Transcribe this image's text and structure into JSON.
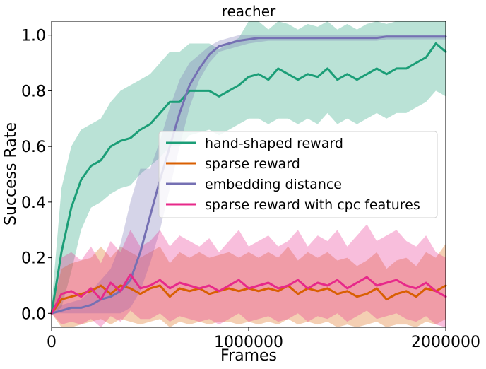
{
  "chart_data": {
    "type": "line",
    "title": "reacher",
    "xlabel": "Frames",
    "ylabel": "Success Rate",
    "xlim": [
      0,
      2000000
    ],
    "ylim": [
      -0.05,
      1.05
    ],
    "x_ticks": [
      0,
      1000000,
      2000000
    ],
    "x_tick_labels": [
      "0",
      "1000000",
      "2000000"
    ],
    "y_ticks": [
      0.0,
      0.2,
      0.4,
      0.6,
      0.8,
      1.0
    ],
    "y_tick_labels": [
      "0.0",
      "0.2",
      "0.4",
      "0.6",
      "0.8",
      "1.0"
    ],
    "grid": false,
    "legend_position": "center-right",
    "x": [
      0,
      50000,
      100000,
      150000,
      200000,
      250000,
      300000,
      350000,
      400000,
      450000,
      500000,
      550000,
      600000,
      650000,
      700000,
      750000,
      800000,
      850000,
      900000,
      950000,
      1000000,
      1050000,
      1100000,
      1150000,
      1200000,
      1250000,
      1300000,
      1350000,
      1400000,
      1450000,
      1500000,
      1550000,
      1600000,
      1650000,
      1700000,
      1750000,
      1800000,
      1850000,
      1900000,
      1950000,
      2000000
    ],
    "series": [
      {
        "name": "hand-shaped reward",
        "color": "#1b9e77",
        "values": [
          0.0,
          0.22,
          0.38,
          0.48,
          0.53,
          0.55,
          0.6,
          0.62,
          0.63,
          0.66,
          0.68,
          0.72,
          0.76,
          0.76,
          0.8,
          0.8,
          0.8,
          0.78,
          0.8,
          0.82,
          0.85,
          0.86,
          0.84,
          0.88,
          0.86,
          0.84,
          0.86,
          0.85,
          0.88,
          0.84,
          0.86,
          0.84,
          0.86,
          0.88,
          0.86,
          0.88,
          0.88,
          0.9,
          0.92,
          0.97,
          0.94
        ],
        "band_lower": [
          0.0,
          0.02,
          0.15,
          0.3,
          0.38,
          0.4,
          0.43,
          0.45,
          0.46,
          0.5,
          0.53,
          0.56,
          0.6,
          0.6,
          0.64,
          0.65,
          0.66,
          0.64,
          0.66,
          0.68,
          0.7,
          0.7,
          0.68,
          0.7,
          0.7,
          0.68,
          0.7,
          0.68,
          0.72,
          0.68,
          0.7,
          0.68,
          0.7,
          0.72,
          0.7,
          0.72,
          0.72,
          0.74,
          0.76,
          0.8,
          0.78
        ],
        "band_upper": [
          0.03,
          0.45,
          0.6,
          0.66,
          0.68,
          0.7,
          0.76,
          0.8,
          0.82,
          0.84,
          0.86,
          0.9,
          0.94,
          0.94,
          0.97,
          0.97,
          0.97,
          0.95,
          0.97,
          0.99,
          1.05,
          1.05,
          1.02,
          1.05,
          1.04,
          1.02,
          1.04,
          1.03,
          1.05,
          1.02,
          1.04,
          1.02,
          1.04,
          1.05,
          1.04,
          1.05,
          1.05,
          1.05,
          1.05,
          1.05,
          1.05
        ]
      },
      {
        "name": "sparse reward",
        "color": "#d95f02",
        "values": [
          0.0,
          0.05,
          0.06,
          0.07,
          0.08,
          0.1,
          0.07,
          0.1,
          0.09,
          0.07,
          0.09,
          0.1,
          0.06,
          0.09,
          0.08,
          0.09,
          0.07,
          0.08,
          0.09,
          0.08,
          0.09,
          0.08,
          0.09,
          0.08,
          0.1,
          0.07,
          0.09,
          0.08,
          0.09,
          0.07,
          0.08,
          0.06,
          0.07,
          0.09,
          0.05,
          0.07,
          0.08,
          0.06,
          0.09,
          0.08,
          0.1
        ],
        "band_lower": [
          0.0,
          -0.05,
          -0.05,
          -0.04,
          -0.03,
          -0.02,
          -0.04,
          -0.02,
          -0.03,
          -0.04,
          -0.03,
          -0.02,
          -0.05,
          -0.03,
          -0.04,
          -0.03,
          -0.04,
          -0.03,
          -0.03,
          -0.04,
          -0.03,
          -0.04,
          -0.03,
          -0.04,
          -0.02,
          -0.04,
          -0.03,
          -0.04,
          -0.03,
          -0.05,
          -0.04,
          -0.05,
          -0.04,
          -0.03,
          -0.05,
          -0.04,
          -0.04,
          -0.05,
          -0.03,
          -0.04,
          -0.02
        ],
        "band_upper": [
          0.01,
          0.16,
          0.18,
          0.19,
          0.2,
          0.24,
          0.2,
          0.24,
          0.22,
          0.2,
          0.22,
          0.24,
          0.18,
          0.22,
          0.2,
          0.22,
          0.2,
          0.21,
          0.22,
          0.2,
          0.22,
          0.2,
          0.22,
          0.2,
          0.24,
          0.19,
          0.22,
          0.2,
          0.22,
          0.19,
          0.2,
          0.17,
          0.19,
          0.22,
          0.16,
          0.19,
          0.2,
          0.17,
          0.22,
          0.2,
          0.25
        ]
      },
      {
        "name": "embedding distance",
        "color": "#7570b3",
        "values": [
          0.0,
          0.01,
          0.02,
          0.02,
          0.03,
          0.05,
          0.06,
          0.08,
          0.12,
          0.22,
          0.35,
          0.48,
          0.6,
          0.72,
          0.82,
          0.88,
          0.93,
          0.96,
          0.97,
          0.98,
          0.985,
          0.99,
          0.99,
          0.99,
          0.99,
          0.99,
          0.99,
          0.99,
          0.99,
          0.99,
          0.99,
          0.99,
          0.99,
          0.99,
          0.995,
          0.995,
          0.995,
          0.995,
          0.995,
          0.995,
          0.995
        ],
        "band_lower": [
          0.0,
          0.0,
          0.0,
          0.0,
          0.0,
          0.0,
          0.0,
          0.0,
          0.02,
          0.08,
          0.18,
          0.3,
          0.45,
          0.6,
          0.74,
          0.84,
          0.9,
          0.94,
          0.95,
          0.96,
          0.97,
          0.975,
          0.98,
          0.98,
          0.98,
          0.98,
          0.98,
          0.98,
          0.98,
          0.98,
          0.98,
          0.98,
          0.98,
          0.98,
          0.985,
          0.985,
          0.985,
          0.985,
          0.985,
          0.985,
          0.985
        ],
        "band_upper": [
          0.01,
          0.03,
          0.04,
          0.05,
          0.08,
          0.12,
          0.16,
          0.25,
          0.4,
          0.52,
          0.52,
          0.62,
          0.74,
          0.84,
          0.9,
          0.93,
          0.96,
          0.98,
          0.99,
          1.0,
          1.0,
          1.0,
          1.0,
          1.0,
          1.0,
          1.0,
          1.0,
          1.0,
          1.0,
          1.0,
          1.0,
          1.0,
          1.0,
          1.0,
          1.0,
          1.0,
          1.0,
          1.0,
          1.0,
          1.0,
          1.0
        ]
      },
      {
        "name": "sparse reward with cpc features",
        "color": "#e7298a",
        "values": [
          0.0,
          0.07,
          0.08,
          0.06,
          0.09,
          0.05,
          0.11,
          0.08,
          0.14,
          0.09,
          0.1,
          0.12,
          0.09,
          0.11,
          0.1,
          0.09,
          0.1,
          0.08,
          0.1,
          0.12,
          0.09,
          0.1,
          0.11,
          0.09,
          0.1,
          0.12,
          0.09,
          0.11,
          0.1,
          0.12,
          0.09,
          0.11,
          0.13,
          0.1,
          0.11,
          0.12,
          0.1,
          0.09,
          0.11,
          0.08,
          0.06
        ],
        "band_lower": [
          0.0,
          -0.04,
          -0.03,
          -0.04,
          -0.02,
          -0.05,
          -0.01,
          -0.03,
          0.01,
          -0.02,
          -0.02,
          0.0,
          -0.03,
          -0.01,
          -0.02,
          -0.03,
          -0.02,
          -0.04,
          -0.02,
          0.0,
          -0.03,
          -0.02,
          -0.01,
          -0.03,
          -0.02,
          0.0,
          -0.03,
          -0.01,
          -0.02,
          0.0,
          -0.03,
          -0.01,
          0.01,
          -0.02,
          -0.01,
          0.0,
          -0.02,
          -0.03,
          -0.01,
          -0.04,
          -0.05
        ],
        "band_upper": [
          0.02,
          0.2,
          0.22,
          0.19,
          0.24,
          0.18,
          0.26,
          0.22,
          0.3,
          0.24,
          0.26,
          0.3,
          0.24,
          0.28,
          0.26,
          0.24,
          0.27,
          0.22,
          0.26,
          0.3,
          0.24,
          0.26,
          0.28,
          0.24,
          0.26,
          0.3,
          0.24,
          0.28,
          0.26,
          0.3,
          0.24,
          0.28,
          0.32,
          0.26,
          0.28,
          0.3,
          0.26,
          0.24,
          0.28,
          0.22,
          0.2
        ]
      }
    ]
  }
}
